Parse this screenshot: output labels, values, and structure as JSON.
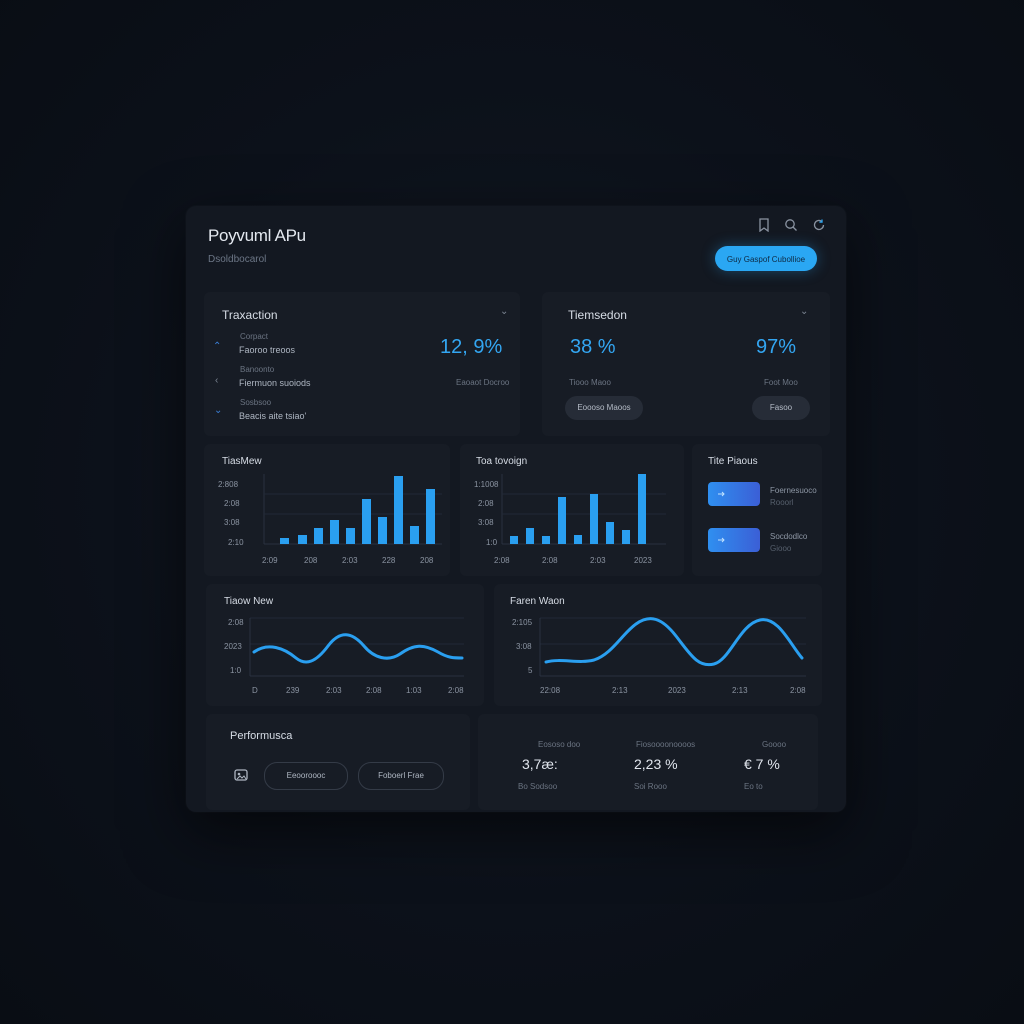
{
  "header": {
    "title": "Poyvuml APu",
    "subtitle": "Dsoldbocarol",
    "primary_button": "Guy Gaspof Cubollioe",
    "icons": [
      "bookmark-icon",
      "search-icon",
      "refresh-icon"
    ]
  },
  "card_transaction": {
    "title": "Traxaction",
    "rows": [
      {
        "meta": "Corpact",
        "label": "Faoroo treoos",
        "icon": "chevron-up-icon"
      },
      {
        "meta": "Banoonto",
        "label": "Fiermuon suoiods",
        "icon": "chevron-left-icon"
      },
      {
        "meta": "Sosbsoo",
        "label": "Beacis aite tsiao'",
        "icon": "chevron-down-icon"
      }
    ],
    "value": "12, 9%",
    "value_caption": "Eaoaot Docroo"
  },
  "card_transaction_2": {
    "title": "Tiemsedon",
    "value_a": "38 %",
    "caption_a": "Tiooo Maoo",
    "value_b": "97%",
    "caption_b": "Foot Moo",
    "button_a": "Eoooso Maoos",
    "button_b": "Fasoo"
  },
  "bar_chart_1": {
    "title": "TiasMew",
    "y_ticks": [
      "2:808",
      "2:08",
      "3:08",
      "2:10"
    ],
    "x_ticks": [
      "2:09",
      "208",
      "2:03",
      "228",
      "208"
    ]
  },
  "bar_chart_2": {
    "title": "Toa tovoign",
    "y_ticks": [
      "1:1008",
      "2:08",
      "3:08",
      "1:0"
    ],
    "x_ticks": [
      "2:08",
      "2:08",
      "2:03",
      "2023"
    ]
  },
  "tile_card": {
    "title": "Tite Piaous",
    "items": [
      {
        "label": "Foernesuoco",
        "meta": "Rooorl"
      },
      {
        "label": "Socdodlco",
        "meta": "Giooo"
      }
    ]
  },
  "wave_chart_1": {
    "title": "Tiaow New",
    "y_ticks": [
      "2:08",
      "2023",
      "1:0"
    ],
    "x_ticks": [
      "D",
      "239",
      "2:03",
      "2:08",
      "1:03",
      "2:08"
    ]
  },
  "wave_chart_2": {
    "title": "Faren Waon",
    "y_ticks": [
      "2:105",
      "3:08",
      "5"
    ],
    "x_ticks": [
      "22:08",
      "2:13",
      "2023",
      "2:13",
      "2:08"
    ]
  },
  "performance": {
    "title": "Performusca",
    "icon": "image-icon",
    "button_a": "Eeooroooc",
    "button_b": "Foboerl Frae"
  },
  "stats": [
    {
      "label": "Eososo doo",
      "value": "3,7æ:",
      "caption": "Bo Sodsoo"
    },
    {
      "label": "Fiosoooonoooos",
      "value": "2,23 %",
      "caption": "Soi Rooo"
    },
    {
      "label": "Goooo",
      "value": "€ 7 %",
      "caption": "Eo to"
    }
  ],
  "colors": {
    "accent": "#2aa7f3",
    "background": "#0c111a",
    "panel": "#131821",
    "card": "#171c25"
  }
}
